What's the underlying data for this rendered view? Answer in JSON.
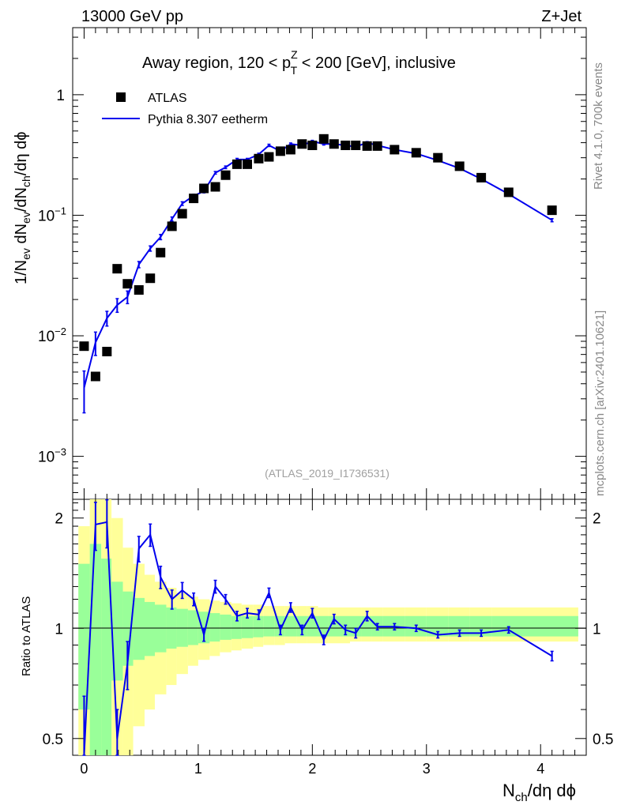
{
  "header": {
    "left": "13000 GeV pp",
    "right": "Z+Jet"
  },
  "title": {
    "prefix": "Away region, 120 < p",
    "sup": "Z",
    "sub": "T",
    "suffix": " < 200 [GeV], inclusive"
  },
  "legend": {
    "data_label": "ATLAS",
    "mc_label": "Pythia 8.307 eetherm"
  },
  "watermark": "(ATLAS_2019_I1736531)",
  "side_labels": {
    "top": "Rivet 4.1.0,  700k events",
    "bottom": "mcplots.cern.ch [arXiv:2401.10621]"
  },
  "colors": {
    "data": "#000000",
    "mc": "#0000ee",
    "band_stat": "#99ff99",
    "band_total": "#ffff99"
  },
  "axes": {
    "xlabel": {
      "main": "N",
      "sub": "ch",
      "rest": "/dη dϕ"
    },
    "ylabel_main": {
      "p1": "1/N",
      "s1": "ev",
      "p2": " dN",
      "s2": "ev",
      "p3": "/dN",
      "s3": "ch",
      "p4": "/dη dϕ"
    },
    "ylabel_ratio": "Ratio to ATLAS",
    "x_ticks": [
      "0",
      "1",
      "2",
      "3",
      "4"
    ],
    "main_ticks": [
      {
        "base": "1",
        "exp": ""
      },
      {
        "base": "10",
        "exp": "−1"
      },
      {
        "base": "10",
        "exp": "−2"
      },
      {
        "base": "10",
        "exp": "−3"
      }
    ],
    "ratio_ticks": [
      "2",
      "1",
      "0.5"
    ]
  },
  "chart_data": {
    "type": "scatter",
    "xlim": [
      -0.1,
      4.4
    ],
    "ylim_main": [
      0.00044,
      3.6
    ],
    "ylim_ratio": [
      0.45,
      2.25
    ],
    "xscale": "linear",
    "yscale_main": "log",
    "yscale_ratio": "log",
    "data": {
      "name": "ATLAS",
      "x": [
        0.0,
        0.1,
        0.2,
        0.29,
        0.38,
        0.48,
        0.58,
        0.67,
        0.77,
        0.86,
        0.96,
        1.05,
        1.15,
        1.24,
        1.34,
        1.43,
        1.53,
        1.62,
        1.72,
        1.81,
        1.91,
        2.0,
        2.1,
        2.19,
        2.29,
        2.38,
        2.48,
        2.57,
        2.72,
        2.91,
        3.1,
        3.29,
        3.48,
        3.72,
        4.1
      ],
      "y": [
        0.0082,
        0.0046,
        0.0074,
        0.036,
        0.027,
        0.024,
        0.03,
        0.049,
        0.081,
        0.103,
        0.138,
        0.167,
        0.172,
        0.215,
        0.265,
        0.265,
        0.295,
        0.305,
        0.34,
        0.35,
        0.39,
        0.38,
        0.43,
        0.39,
        0.38,
        0.38,
        0.375,
        0.375,
        0.35,
        0.33,
        0.3,
        0.255,
        0.205,
        0.155,
        0.11
      ]
    },
    "mc": {
      "name": "Pythia 8.307 eetherm",
      "x": [
        0.0,
        0.1,
        0.2,
        0.29,
        0.38,
        0.48,
        0.58,
        0.67,
        0.77,
        0.86,
        0.96,
        1.05,
        1.15,
        1.24,
        1.34,
        1.43,
        1.53,
        1.62,
        1.72,
        1.81,
        1.91,
        2.0,
        2.1,
        2.19,
        2.29,
        2.38,
        2.48,
        2.57,
        2.72,
        2.91,
        3.1,
        3.29,
        3.48,
        3.72,
        4.1
      ],
      "y": [
        0.0037,
        0.0088,
        0.014,
        0.018,
        0.021,
        0.039,
        0.053,
        0.066,
        0.093,
        0.125,
        0.145,
        0.158,
        0.225,
        0.25,
        0.29,
        0.29,
        0.32,
        0.38,
        0.34,
        0.39,
        0.38,
        0.41,
        0.39,
        0.39,
        0.38,
        0.37,
        0.4,
        0.38,
        0.35,
        0.325,
        0.285,
        0.245,
        0.2,
        0.15,
        0.091
      ],
      "err_rel": [
        0.38,
        0.22,
        0.14,
        0.13,
        0.12,
        0.06,
        0.05,
        0.05,
        0.04,
        0.035,
        0.03,
        0.03,
        0.025,
        0.025,
        0.022,
        0.022,
        0.022,
        0.022,
        0.02,
        0.02,
        0.02,
        0.02,
        0.02,
        0.02,
        0.02,
        0.02,
        0.02,
        0.02,
        0.02,
        0.02,
        0.02,
        0.02,
        0.02,
        0.022,
        0.03
      ]
    },
    "ratio": {
      "x": [
        0.0,
        0.1,
        0.2,
        0.29,
        0.38,
        0.48,
        0.58,
        0.67,
        0.77,
        0.86,
        0.96,
        1.05,
        1.15,
        1.24,
        1.34,
        1.43,
        1.53,
        1.62,
        1.72,
        1.81,
        1.91,
        2.0,
        2.1,
        2.19,
        2.29,
        2.38,
        2.48,
        2.57,
        2.72,
        2.91,
        3.1,
        3.29,
        3.48,
        3.72,
        4.1
      ],
      "y": [
        0.45,
        1.92,
        1.95,
        0.5,
        0.8,
        1.65,
        1.8,
        1.38,
        1.2,
        1.27,
        1.2,
        0.96,
        1.3,
        1.2,
        1.08,
        1.1,
        1.09,
        1.25,
        0.99,
        1.14,
        0.99,
        1.1,
        0.93,
        1.06,
        0.99,
        0.97,
        1.08,
        1.01,
        1.01,
        1.0,
        0.96,
        0.97,
        0.97,
        0.99,
        0.84
      ],
      "err_rel": [
        0.45,
        0.15,
        0.15,
        0.2,
        0.15,
        0.08,
        0.07,
        0.07,
        0.06,
        0.05,
        0.04,
        0.04,
        0.04,
        0.03,
        0.03,
        0.03,
        0.03,
        0.03,
        0.03,
        0.03,
        0.03,
        0.03,
        0.03,
        0.03,
        0.03,
        0.03,
        0.03,
        0.02,
        0.02,
        0.02,
        0.02,
        0.02,
        0.02,
        0.02,
        0.03
      ]
    },
    "bands": {
      "edges": [
        -0.05,
        0.05,
        0.15,
        0.24,
        0.34,
        0.43,
        0.53,
        0.62,
        0.72,
        0.81,
        0.91,
        1.0,
        1.1,
        1.19,
        1.29,
        1.38,
        1.48,
        1.57,
        1.67,
        1.76,
        1.86,
        1.95,
        2.05,
        2.14,
        2.24,
        2.33,
        2.43,
        2.52,
        2.62,
        2.81,
        3.0,
        3.19,
        3.38,
        3.57,
        3.86,
        4.33
      ],
      "stat_lo": [
        0.6,
        0.45,
        0.45,
        0.72,
        0.79,
        0.82,
        0.84,
        0.86,
        0.88,
        0.89,
        0.9,
        0.91,
        0.92,
        0.93,
        0.935,
        0.94,
        0.945,
        0.95,
        0.95,
        0.95,
        0.95,
        0.95,
        0.95,
        0.95,
        0.95,
        0.95,
        0.95,
        0.95,
        0.95,
        0.95,
        0.95,
        0.95,
        0.95,
        0.95,
        0.95
      ],
      "stat_hi": [
        1.5,
        1.7,
        1.55,
        1.34,
        1.26,
        1.21,
        1.18,
        1.16,
        1.14,
        1.13,
        1.12,
        1.11,
        1.1,
        1.09,
        1.08,
        1.08,
        1.08,
        1.08,
        1.08,
        1.08,
        1.08,
        1.08,
        1.08,
        1.08,
        1.08,
        1.08,
        1.08,
        1.08,
        1.08,
        1.08,
        1.08,
        1.08,
        1.08,
        1.08,
        1.08
      ],
      "tot_lo": [
        0.3,
        0.3,
        0.3,
        0.3,
        0.45,
        0.54,
        0.6,
        0.66,
        0.7,
        0.75,
        0.79,
        0.82,
        0.84,
        0.86,
        0.87,
        0.88,
        0.89,
        0.9,
        0.9,
        0.91,
        0.91,
        0.91,
        0.91,
        0.91,
        0.91,
        0.92,
        0.92,
        0.92,
        0.92,
        0.92,
        0.92,
        0.92,
        0.92,
        0.92,
        0.92
      ],
      "tot_hi": [
        1.9,
        2.25,
        2.25,
        2.0,
        1.66,
        1.5,
        1.4,
        1.34,
        1.29,
        1.25,
        1.22,
        1.2,
        1.19,
        1.18,
        1.17,
        1.16,
        1.16,
        1.15,
        1.15,
        1.15,
        1.15,
        1.15,
        1.14,
        1.14,
        1.14,
        1.14,
        1.14,
        1.14,
        1.14,
        1.14,
        1.14,
        1.14,
        1.14,
        1.14,
        1.14
      ]
    }
  }
}
